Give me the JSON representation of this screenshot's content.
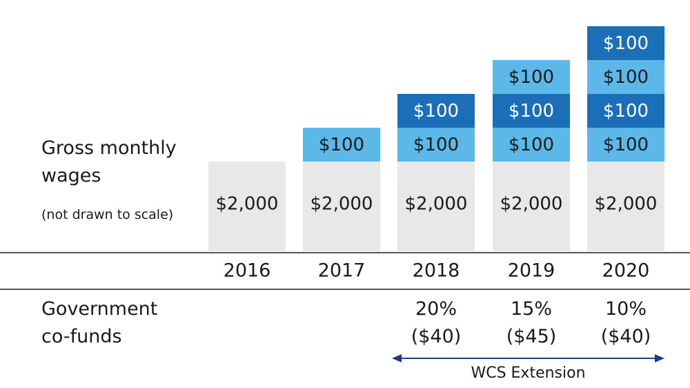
{
  "left_labels": {
    "wages_line1": "Gross monthly",
    "wages_line2": "wages",
    "wages_note": "(not drawn to scale)",
    "cofund_line1": "Government",
    "cofund_line2": "co-funds"
  },
  "chart_data": {
    "type": "bar",
    "stacked": true,
    "categories": [
      "2016",
      "2017",
      "2018",
      "2019",
      "2020"
    ],
    "base": {
      "values": [
        2000,
        2000,
        2000,
        2000,
        2000
      ],
      "labels": [
        "$2,000",
        "$2,000",
        "$2,000",
        "$2,000",
        "$2,000"
      ],
      "color": "#e8e8e8"
    },
    "increments": [
      [],
      [
        {
          "value": 100,
          "label": "$100",
          "color": "#5bb8e8"
        }
      ],
      [
        {
          "value": 100,
          "label": "$100",
          "color": "#5bb8e8"
        },
        {
          "value": 100,
          "label": "$100",
          "color": "#1a6fb8"
        }
      ],
      [
        {
          "value": 100,
          "label": "$100",
          "color": "#5bb8e8"
        },
        {
          "value": 100,
          "label": "$100",
          "color": "#1a6fb8"
        },
        {
          "value": 100,
          "label": "$100",
          "color": "#5bb8e8"
        }
      ],
      [
        {
          "value": 100,
          "label": "$100",
          "color": "#5bb8e8"
        },
        {
          "value": 100,
          "label": "$100",
          "color": "#1a6fb8"
        },
        {
          "value": 100,
          "label": "$100",
          "color": "#5bb8e8"
        },
        {
          "value": 100,
          "label": "$100",
          "color": "#1a6fb8"
        }
      ]
    ],
    "cofunding": [
      null,
      null,
      {
        "percent": "20%",
        "amount": "($40)"
      },
      {
        "percent": "15%",
        "amount": "($45)"
      },
      {
        "percent": "10%",
        "amount": "($40)"
      }
    ],
    "annotation": {
      "text": "WCS Extension",
      "from_category": "2018",
      "to_category": "2020",
      "color": "#1f3a8a"
    },
    "colors": {
      "base": "#e8e8e8",
      "light_blue": "#5bb8e8",
      "dark_blue": "#1a6fb8",
      "divider": "#555555"
    }
  }
}
